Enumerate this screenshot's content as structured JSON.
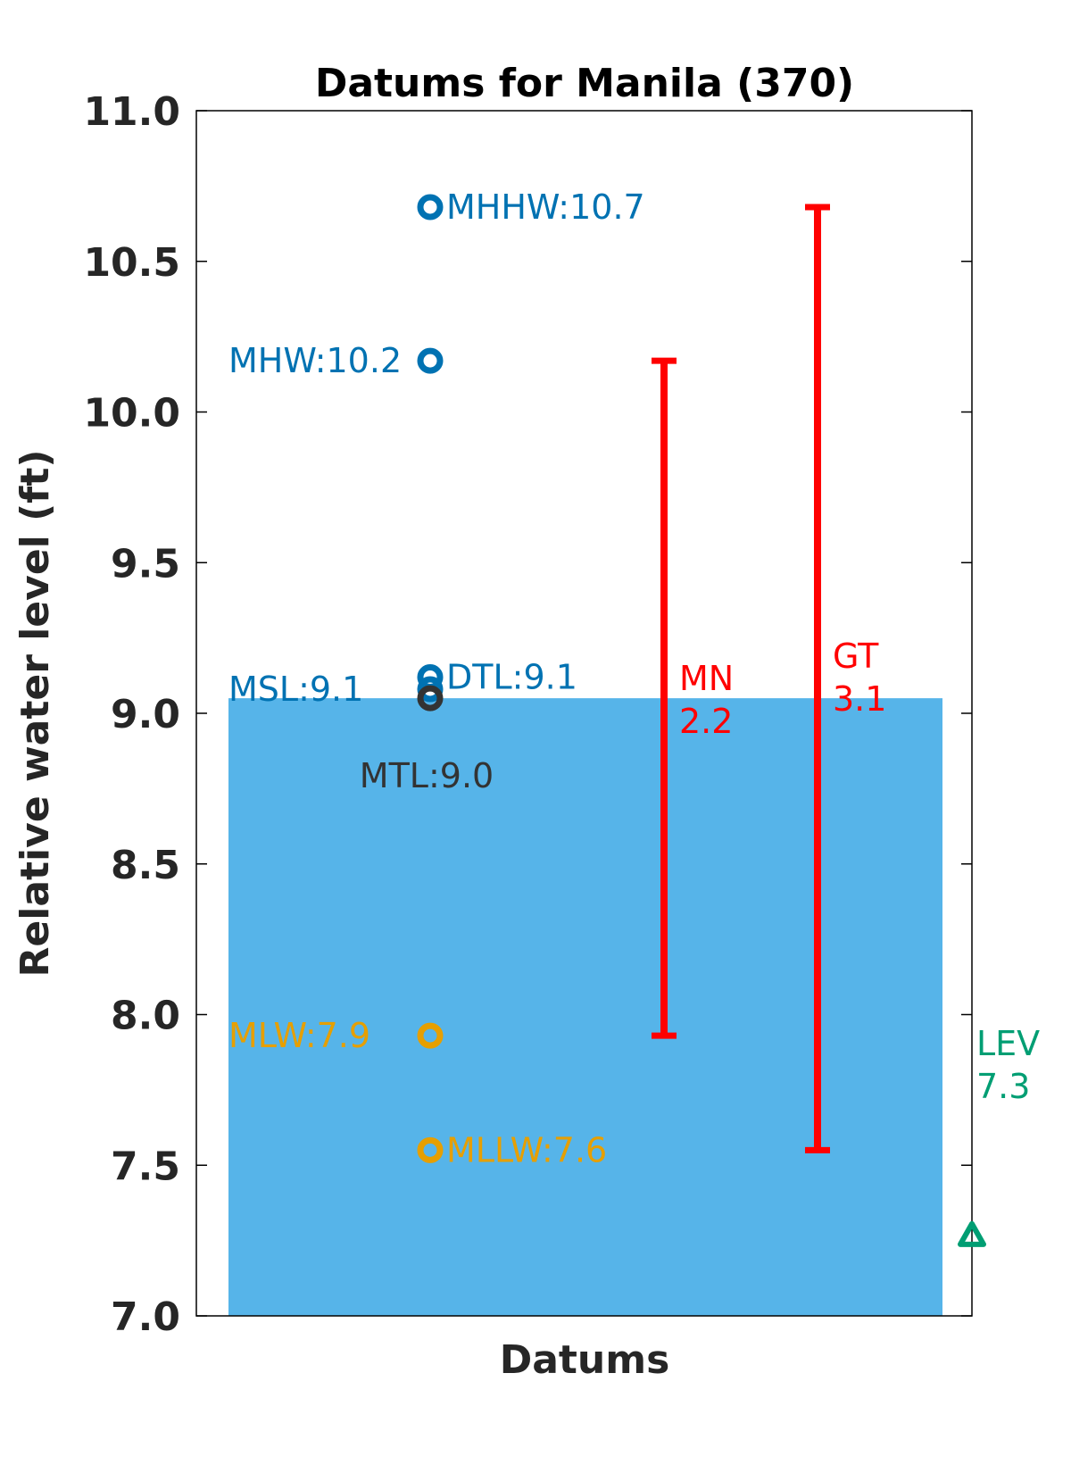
{
  "chart_data": {
    "type": "scatter",
    "title": "Datums for Manila (370)",
    "xlabel": "Datums",
    "ylabel": "Relative water level (ft)",
    "ylim": [
      7.0,
      11.0
    ],
    "yticks": [
      "7.0",
      "7.5",
      "8.0",
      "8.5",
      "9.0",
      "9.5",
      "10.0",
      "10.5",
      "11.0"
    ],
    "grid": false,
    "background_bar": {
      "value": 9.05,
      "color": "#56B4E9"
    },
    "points": [
      {
        "name": "MHHW",
        "label": "MHHW:10.7",
        "value": 10.68,
        "color": "#0072B2",
        "label_side": "right"
      },
      {
        "name": "MHW",
        "label": "MHW:10.2",
        "value": 10.17,
        "color": "#0072B2",
        "label_side": "left"
      },
      {
        "name": "DTL",
        "label": "DTL:9.1",
        "value": 9.12,
        "color": "#0072B2",
        "label_side": "right"
      },
      {
        "name": "MSL",
        "label": "MSL:9.1",
        "value": 9.08,
        "color": "#0072B2",
        "label_side": "left"
      },
      {
        "name": "MTL",
        "label": "MTL:9.0",
        "value": 9.05,
        "color": "#333333",
        "label_side": "below"
      },
      {
        "name": "MLW",
        "label": "MLW:7.9",
        "value": 7.93,
        "color": "#E69F00",
        "label_side": "left"
      },
      {
        "name": "MLLW",
        "label": "MLLW:7.6",
        "value": 7.55,
        "color": "#E69F00",
        "label_side": "right"
      }
    ],
    "ranges": [
      {
        "name": "MN",
        "label": "MN",
        "value_text": "2.2",
        "low": 7.93,
        "high": 10.17,
        "color": "#FF0000"
      },
      {
        "name": "GT",
        "label": "GT",
        "value_text": "3.1",
        "low": 7.55,
        "high": 10.68,
        "color": "#FF0000"
      }
    ],
    "level": {
      "name": "LEV",
      "label": "LEV",
      "value_text": "7.3",
      "value": 7.27,
      "color": "#009E73"
    }
  }
}
